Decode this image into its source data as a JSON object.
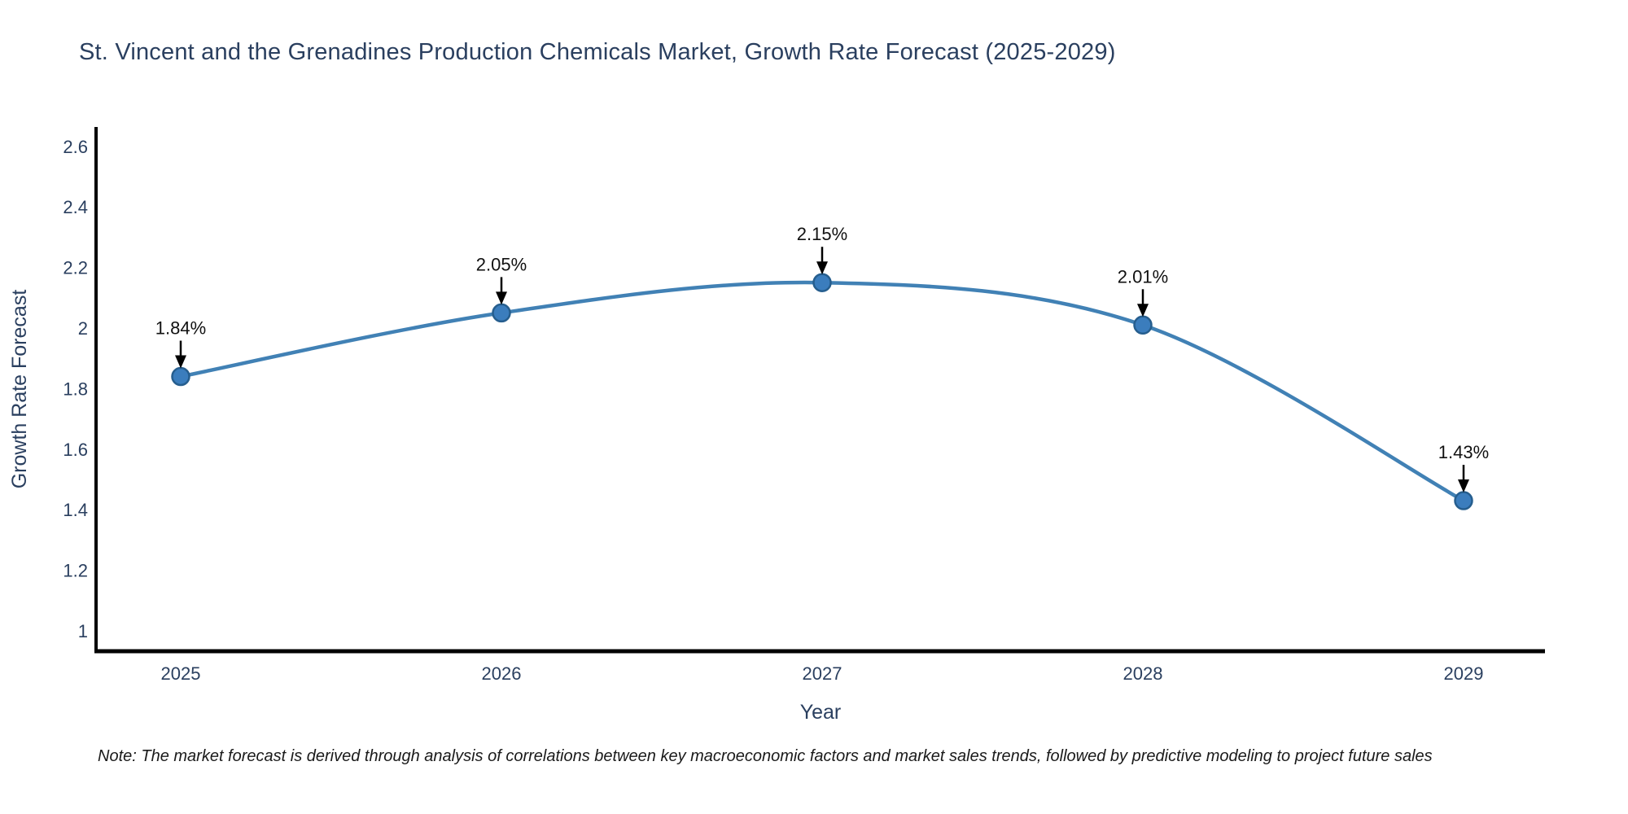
{
  "title": "St. Vincent and the Grenadines Production Chemicals Market, Growth Rate Forecast (2025-2029)",
  "note": "Note: The market forecast is derived through analysis of correlations between key macroeconomic factors and market sales trends, followed by predictive modeling to project future sales",
  "chart_data": {
    "type": "line",
    "line_shape": "spline",
    "x": [
      2025,
      2026,
      2027,
      2028,
      2029
    ],
    "x_tick_labels": [
      "2025",
      "2026",
      "2027",
      "2028",
      "2029"
    ],
    "series": [
      {
        "name": "Growth Rate Forecast",
        "values": [
          1.84,
          2.05,
          2.15,
          2.01,
          1.43
        ]
      }
    ],
    "point_labels": [
      "1.84%",
      "2.05%",
      "2.15%",
      "2.01%",
      "1.43%"
    ],
    "xlabel": "Year",
    "ylabel": "Growth Rate Forecast",
    "ylim": [
      1,
      2.6
    ],
    "yticks": [
      2.6,
      2.4,
      2.2,
      2,
      1.8,
      1.6,
      1.4,
      1.2,
      1
    ],
    "grid": false,
    "legend": false,
    "markers": true,
    "annotations_arrows": true,
    "colors": {
      "line": "#4181b5",
      "marker_fill": "#3b7dbd",
      "marker_edge": "#265e8e",
      "axis_line": "#000000",
      "text": "#2a3f5f",
      "annotation_text": "#111111",
      "arrow": "#000000",
      "note_text": "#1a1a1a",
      "background": "#ffffff"
    }
  }
}
